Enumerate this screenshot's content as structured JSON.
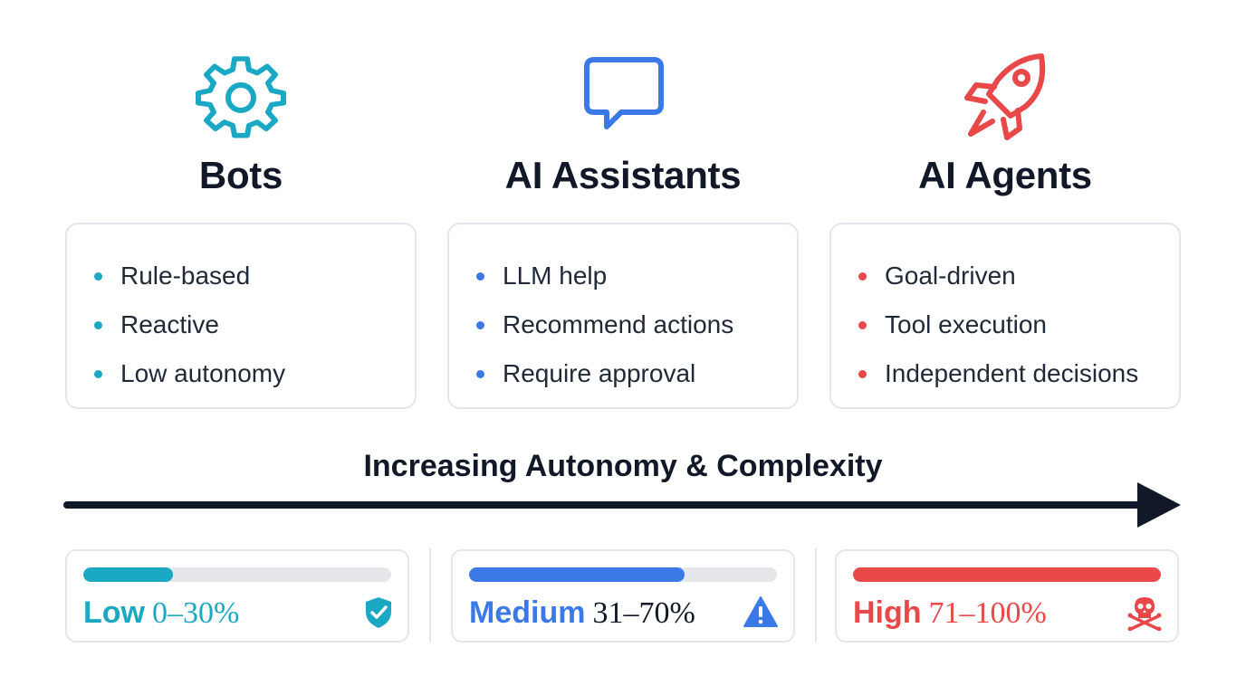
{
  "colors": {
    "teal": "#1aa8c4",
    "blue": "#3b7ae6",
    "red": "#e84848",
    "dark": "#111827"
  },
  "columns": [
    {
      "title": "Bots",
      "icon": "gear-icon",
      "color": "#1aa8c4",
      "items": [
        "Rule-based",
        "Reactive",
        "Low autonomy"
      ]
    },
    {
      "title": "AI Assistants",
      "icon": "chat-bubble-icon",
      "color": "#3b7ae6",
      "items": [
        "LLM help",
        "Recommend actions",
        "Require approval"
      ]
    },
    {
      "title": "AI Agents",
      "icon": "rocket-icon",
      "color": "#e84848",
      "items": [
        "Goal-driven",
        "Tool execution",
        "Independent decisions"
      ]
    }
  ],
  "axis": {
    "label": "Increasing Autonomy & Complexity"
  },
  "levels": [
    {
      "level": "Low",
      "range": "0–30%",
      "fill_fraction": 0.29,
      "icon": "shield-check-icon",
      "color": "#1aa8c4"
    },
    {
      "level": "Medium",
      "range": "31–70%",
      "fill_fraction": 0.7,
      "icon": "warning-icon",
      "color": "#3b7ae6"
    },
    {
      "level": "High",
      "range": "71–100%",
      "fill_fraction": 1.0,
      "icon": "skull-crossbones-icon",
      "color": "#e84848"
    }
  ]
}
